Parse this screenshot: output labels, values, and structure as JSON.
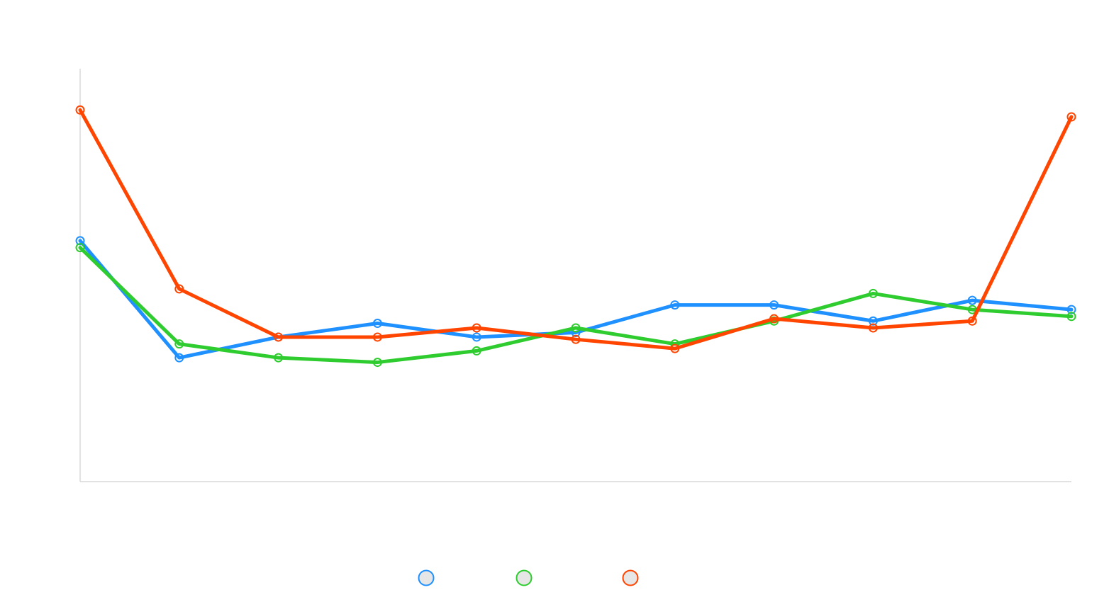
{
  "chart_data": {
    "type": "line",
    "title": "",
    "xlabel": "",
    "ylabel": "",
    "x": [
      0,
      1,
      2,
      3,
      4,
      5,
      6,
      7,
      8,
      9,
      10
    ],
    "ylim": [
      0,
      90
    ],
    "grid": false,
    "legend": {
      "placement": "bottom-center",
      "labels_visible": false
    },
    "series": [
      {
        "color": "#1e90ff",
        "values": [
          52.5,
          27,
          31.5,
          34.5,
          31.5,
          32.5,
          38.5,
          38.5,
          35,
          39.5,
          37.5
        ]
      },
      {
        "color": "#2ecc2e",
        "values": [
          51,
          30,
          27,
          26,
          28.5,
          33.5,
          30,
          35,
          41,
          37.5,
          36
        ]
      },
      {
        "color": "#ff4500",
        "values": [
          81,
          42,
          31.5,
          31.5,
          33.5,
          31,
          29,
          35.5,
          33.5,
          35,
          79.5
        ]
      }
    ]
  }
}
